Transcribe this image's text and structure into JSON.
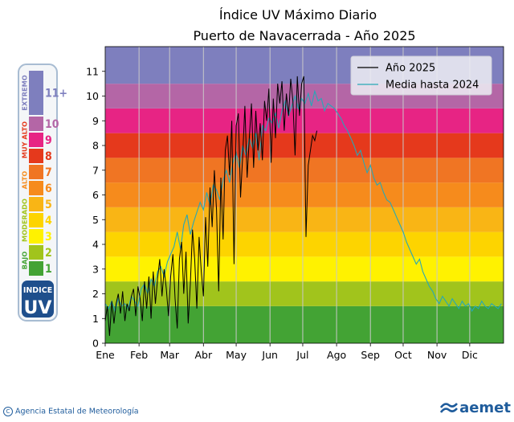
{
  "chart_data": {
    "type": "line",
    "title": "Índice UV Máximo Diario",
    "subtitle": "Puerto de Navacerrada - Año 2025",
    "xlabel": "",
    "ylabel": "",
    "xlim": [
      0,
      365
    ],
    "ylim": [
      0,
      12
    ],
    "x_ticks": [
      {
        "label": "Ene",
        "day": 0
      },
      {
        "label": "Feb",
        "day": 31
      },
      {
        "label": "Mar",
        "day": 59
      },
      {
        "label": "Abr",
        "day": 90
      },
      {
        "label": "May",
        "day": 120
      },
      {
        "label": "Jun",
        "day": 151
      },
      {
        "label": "Jul",
        "day": 181
      },
      {
        "label": "Ago",
        "day": 212
      },
      {
        "label": "Sep",
        "day": 243
      },
      {
        "label": "Oct",
        "day": 273
      },
      {
        "label": "Nov",
        "day": 304
      },
      {
        "label": "Dic",
        "day": 334
      }
    ],
    "y_ticks": [
      0,
      1,
      2,
      3,
      4,
      5,
      6,
      7,
      8,
      9,
      10,
      11
    ],
    "grid": "vertical at month starts",
    "legend": "top-right",
    "bands": [
      {
        "from": 0,
        "to": 1.5,
        "color": "#43a334"
      },
      {
        "from": 1.5,
        "to": 2.5,
        "color": "#a1c41c"
      },
      {
        "from": 2.5,
        "to": 3.5,
        "color": "#fff200"
      },
      {
        "from": 3.5,
        "to": 4.5,
        "color": "#fdd400"
      },
      {
        "from": 4.5,
        "to": 5.5,
        "color": "#f9b515"
      },
      {
        "from": 5.5,
        "to": 6.5,
        "color": "#f68b1c"
      },
      {
        "from": 6.5,
        "to": 7.5,
        "color": "#f07523"
      },
      {
        "from": 7.5,
        "to": 8.5,
        "color": "#e5391c"
      },
      {
        "from": 8.5,
        "to": 9.5,
        "color": "#e72484"
      },
      {
        "from": 9.5,
        "to": 10.5,
        "color": "#b466a6"
      },
      {
        "from": 10.5,
        "to": 12,
        "color": "#7e7fbe"
      }
    ],
    "series": [
      {
        "name": "Año 2025",
        "color": "#000000",
        "x": [
          0,
          2,
          4,
          6,
          8,
          10,
          12,
          14,
          16,
          18,
          20,
          22,
          24,
          26,
          28,
          30,
          32,
          34,
          36,
          38,
          40,
          42,
          44,
          46,
          48,
          50,
          52,
          54,
          56,
          58,
          60,
          62,
          64,
          66,
          68,
          70,
          72,
          74,
          76,
          78,
          80,
          82,
          84,
          86,
          88,
          90,
          92,
          94,
          96,
          98,
          100,
          102,
          104,
          106,
          108,
          110,
          112,
          114,
          116,
          118,
          120,
          122,
          124,
          126,
          128,
          130,
          132,
          134,
          136,
          138,
          140,
          142,
          144,
          146,
          148,
          150,
          152,
          154,
          156,
          158,
          160,
          162,
          164,
          166,
          168,
          170,
          172,
          174,
          176,
          178,
          180,
          182,
          184,
          186,
          188,
          190,
          192,
          194
        ],
        "y": [
          0.9,
          1.5,
          0.3,
          1.7,
          0.8,
          1.6,
          2.0,
          1.2,
          2.1,
          0.9,
          1.6,
          1.3,
          1.9,
          2.2,
          1.1,
          2.3,
          1.8,
          0.9,
          2.5,
          1.4,
          2.7,
          1.0,
          2.9,
          1.6,
          2.6,
          3.4,
          1.9,
          3.0,
          2.2,
          1.1,
          2.7,
          3.6,
          1.8,
          0.6,
          3.4,
          4.1,
          2.0,
          3.7,
          0.8,
          2.4,
          4.6,
          3.4,
          1.4,
          4.3,
          2.9,
          1.9,
          5.1,
          3.1,
          6.3,
          4.7,
          7.0,
          5.4,
          2.1,
          6.7,
          4.2,
          7.8,
          8.4,
          6.8,
          9.0,
          3.2,
          8.8,
          9.3,
          5.9,
          7.6,
          9.6,
          6.7,
          8.3,
          9.7,
          7.1,
          9.4,
          7.8,
          8.9,
          7.4,
          9.8,
          9.0,
          10.3,
          7.3,
          9.9,
          8.3,
          10.5,
          9.7,
          10.6,
          8.6,
          10.1,
          9.2,
          10.7,
          9.8,
          7.6,
          10.8,
          9.2,
          10.5,
          10.8,
          4.3,
          7.2,
          7.8,
          8.4,
          8.2,
          8.6
        ]
      },
      {
        "name": "Media hasta 2024",
        "color": "#26a8b6",
        "x": [
          0,
          3,
          6,
          9,
          12,
          15,
          18,
          21,
          24,
          27,
          30,
          33,
          36,
          39,
          42,
          45,
          48,
          51,
          54,
          57,
          60,
          63,
          66,
          69,
          72,
          75,
          78,
          81,
          84,
          87,
          90,
          93,
          96,
          99,
          102,
          105,
          108,
          111,
          114,
          117,
          120,
          123,
          126,
          129,
          132,
          135,
          138,
          141,
          144,
          147,
          150,
          153,
          156,
          159,
          162,
          165,
          168,
          171,
          174,
          177,
          180,
          183,
          186,
          189,
          192,
          195,
          198,
          201,
          204,
          207,
          210,
          213,
          216,
          219,
          222,
          225,
          228,
          231,
          234,
          237,
          240,
          243,
          246,
          249,
          252,
          255,
          258,
          261,
          264,
          267,
          270,
          273,
          276,
          279,
          282,
          285,
          288,
          291,
          294,
          297,
          300,
          303,
          306,
          309,
          312,
          315,
          318,
          321,
          324,
          327,
          330,
          333,
          336,
          339,
          342,
          345,
          348,
          351,
          354,
          357,
          360,
          363
        ],
        "y": [
          1.6,
          1.4,
          1.7,
          1.3,
          1.8,
          1.5,
          1.6,
          1.4,
          1.9,
          1.7,
          1.5,
          2.2,
          2.4,
          2.0,
          2.6,
          2.3,
          2.9,
          3.1,
          2.7,
          3.3,
          3.6,
          3.9,
          4.5,
          3.8,
          4.8,
          5.2,
          4.4,
          4.9,
          5.3,
          5.7,
          5.4,
          6.1,
          5.6,
          6.4,
          6.2,
          5.8,
          6.6,
          7.0,
          6.5,
          7.3,
          7.7,
          7.1,
          8.0,
          7.6,
          8.3,
          7.9,
          8.5,
          7.4,
          8.8,
          8.6,
          9.1,
          8.9,
          9.3,
          8.7,
          9.4,
          9.8,
          9.2,
          9.6,
          10.0,
          9.5,
          9.9,
          9.7,
          10.1,
          9.6,
          10.2,
          9.8,
          9.9,
          9.4,
          9.7,
          9.6,
          9.5,
          9.3,
          9.1,
          8.8,
          8.6,
          8.3,
          8.0,
          7.6,
          7.8,
          7.3,
          6.9,
          7.2,
          6.7,
          6.4,
          6.5,
          6.1,
          5.8,
          5.7,
          5.4,
          5.1,
          4.8,
          4.5,
          4.1,
          3.8,
          3.5,
          3.2,
          3.4,
          2.9,
          2.6,
          2.3,
          2.1,
          1.8,
          1.6,
          1.9,
          1.7,
          1.5,
          1.8,
          1.6,
          1.4,
          1.7,
          1.5,
          1.6,
          1.3,
          1.5,
          1.4,
          1.7,
          1.5,
          1.4,
          1.6,
          1.5,
          1.4,
          1.6
        ]
      }
    ]
  },
  "uv_scale": {
    "categories": [
      {
        "label": "BAJO",
        "color": "#43a334"
      },
      {
        "label": "MODERADO",
        "color": "#a1c41c"
      },
      {
        "label": "ALTO",
        "color": "#f68b1c"
      },
      {
        "label": "MUY ALTO",
        "color": "#e5391c"
      },
      {
        "label": "EXTREMO",
        "color": "#7e7fbe"
      }
    ],
    "levels": [
      {
        "value": "1",
        "color": "#43a334"
      },
      {
        "value": "2",
        "color": "#a1c41c"
      },
      {
        "value": "3",
        "color": "#fff200"
      },
      {
        "value": "4",
        "color": "#fdd400"
      },
      {
        "value": "5",
        "color": "#f9b515"
      },
      {
        "value": "6",
        "color": "#f68b1c"
      },
      {
        "value": "7",
        "color": "#f07523"
      },
      {
        "value": "8",
        "color": "#e5391c"
      },
      {
        "value": "9",
        "color": "#e72484"
      },
      {
        "value": "10",
        "color": "#b466a6"
      },
      {
        "value": "11+",
        "color": "#7e7fbe"
      }
    ],
    "badge_top": "INDICE",
    "badge_bottom": "UV"
  },
  "footer": {
    "agency": "Agencia Estatal de Meteorología",
    "logo": "aemet",
    "copyright_symbol": "C"
  }
}
